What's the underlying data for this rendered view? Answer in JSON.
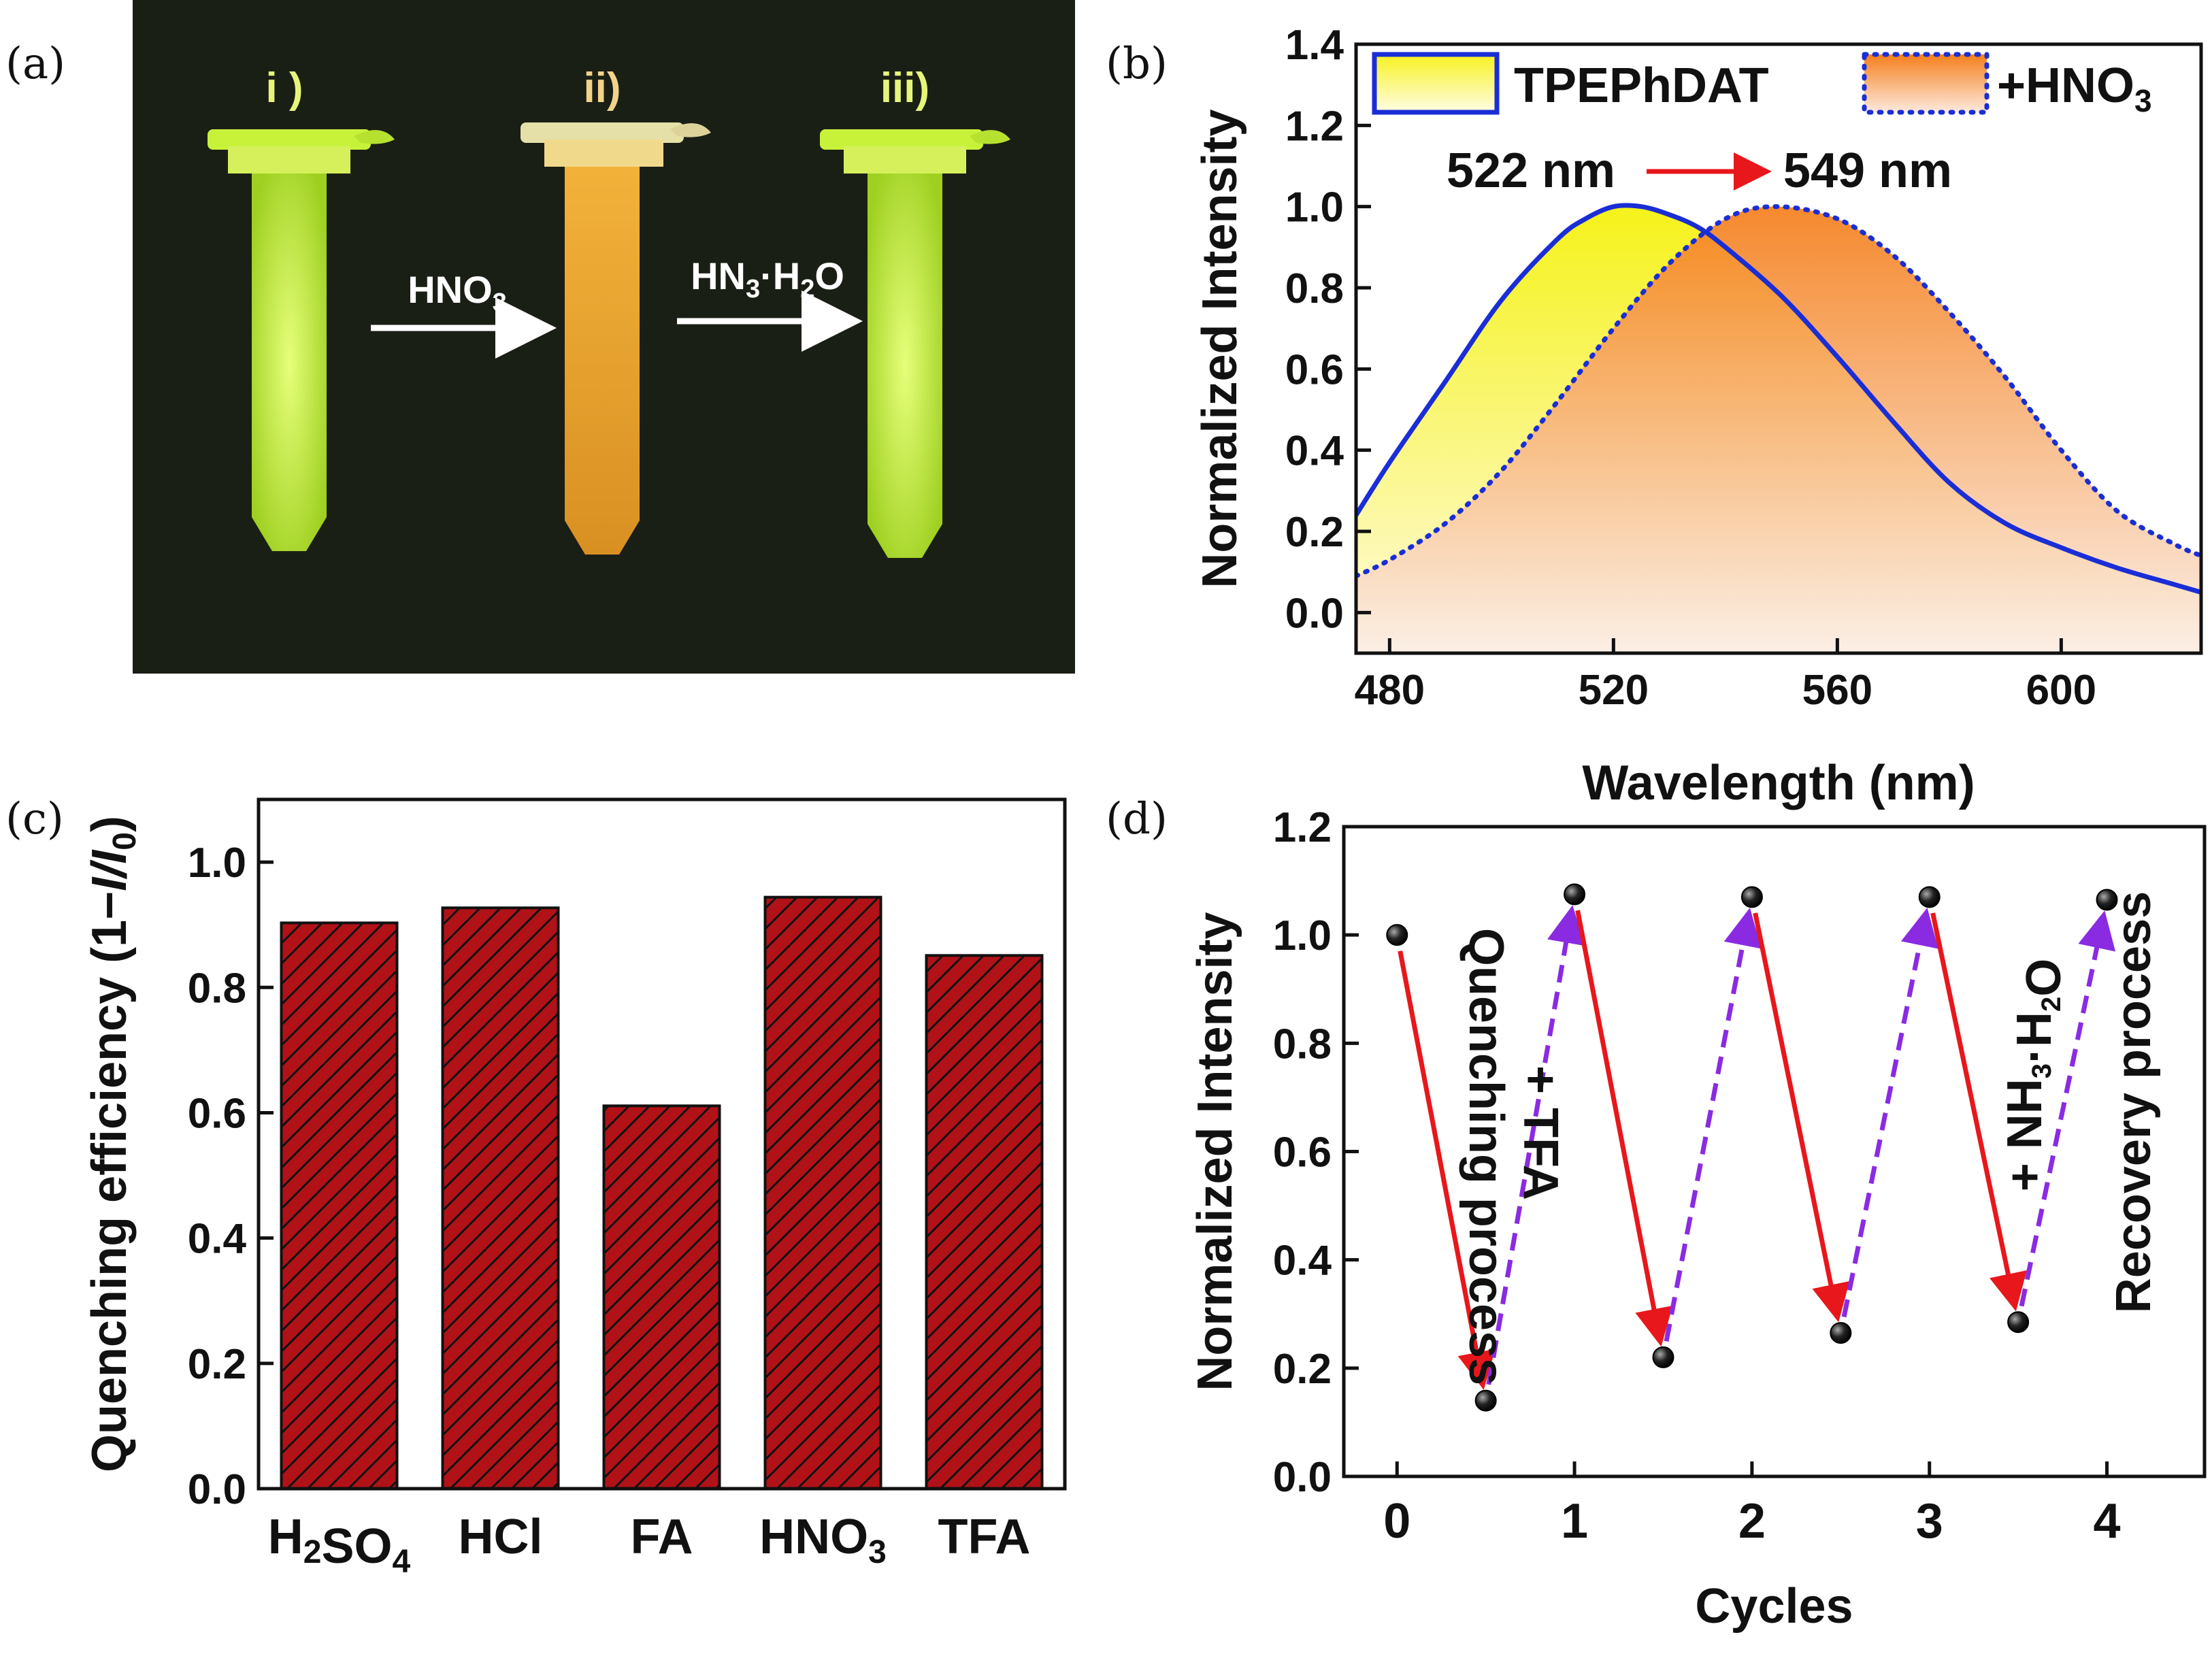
{
  "panels": {
    "a": "(a)",
    "b": "(b)",
    "c": "(c)",
    "d": "(d)"
  },
  "photo": {
    "tube_labels": [
      "i )",
      "ii)",
      "iii)"
    ],
    "arrow1": "HNO3",
    "arrow2": "HN3·H2O",
    "colors": {
      "background": "#1a1f16",
      "tube_green": "#c8f23a",
      "tube_orange": "#e9a52a"
    }
  },
  "chart_data": [
    {
      "panel": "b",
      "type": "area",
      "xlabel": "Wavelength (nm)",
      "ylabel": "Normalized Intensity",
      "xlim": [
        474,
        625
      ],
      "ylim": [
        -0.1,
        1.4
      ],
      "xticks": [
        480,
        520,
        560,
        600
      ],
      "yticks": [
        0.0,
        0.2,
        0.4,
        0.6,
        0.8,
        1.0,
        1.2,
        1.4
      ],
      "legend_position": "top",
      "series": [
        {
          "name": "TPEPhDAT",
          "color": "#1a2ed6",
          "line": "solid",
          "fill": "yellow-gradient",
          "peak": 522,
          "x": [
            474,
            480,
            490,
            500,
            510,
            515,
            520,
            525,
            530,
            535,
            540,
            550,
            560,
            570,
            580,
            590,
            600,
            610,
            620,
            625
          ],
          "y": [
            0.24,
            0.37,
            0.57,
            0.77,
            0.92,
            0.97,
            1.0,
            1.0,
            0.98,
            0.95,
            0.9,
            0.78,
            0.63,
            0.47,
            0.32,
            0.22,
            0.16,
            0.11,
            0.07,
            0.05
          ]
        },
        {
          "name": "+HNO3",
          "color": "#1a2ed6",
          "line": "dotted",
          "fill": "orange-gradient",
          "peak": 549,
          "x": [
            474,
            480,
            490,
            500,
            510,
            520,
            530,
            540,
            549,
            560,
            570,
            580,
            590,
            600,
            610,
            620,
            625
          ],
          "y": [
            0.09,
            0.13,
            0.22,
            0.35,
            0.52,
            0.7,
            0.86,
            0.97,
            1.0,
            0.97,
            0.88,
            0.74,
            0.58,
            0.4,
            0.25,
            0.17,
            0.14
          ]
        }
      ],
      "annotations": {
        "peak1": "522 nm",
        "peak2": "549 nm",
        "peak1_color": "#f5f21a",
        "peak2_color": "#f28a1e"
      }
    },
    {
      "panel": "c",
      "type": "bar",
      "xlabel": "",
      "ylabel": "Quenching efficiency (1−I/I0)",
      "ylim": [
        0.0,
        1.1
      ],
      "yticks": [
        0.0,
        0.2,
        0.4,
        0.6,
        0.8,
        1.0
      ],
      "categories": [
        "H2SO4",
        "HCl",
        "FA",
        "HNO3",
        "TFA"
      ],
      "values": [
        0.903,
        0.927,
        0.611,
        0.944,
        0.851
      ],
      "bar_color": "#b01218",
      "hatch": "diagonal"
    },
    {
      "panel": "d",
      "type": "scatter",
      "xlabel": "Cycles",
      "ylabel": "Normalized Intensity",
      "xlim": [
        -0.3,
        4.55
      ],
      "ylim": [
        0.0,
        1.2
      ],
      "xticks": [
        0,
        1,
        2,
        3,
        4
      ],
      "yticks": [
        0.0,
        0.2,
        0.4,
        0.6,
        0.8,
        1.0,
        1.2
      ],
      "x": [
        0,
        0.5,
        1,
        1.5,
        2,
        2.5,
        3,
        3.5,
        4
      ],
      "y": [
        1.0,
        0.14,
        1.075,
        0.22,
        1.07,
        0.265,
        1.07,
        0.285,
        1.065
      ],
      "quench_color": "#e8171b",
      "recovery_color": "#8a2be2",
      "annotations": {
        "quench_agent": "+ TFA",
        "quench_process": "Quenching process",
        "recovery_agent": "+ NH3·H2O",
        "recovery_process": "Recovery process"
      }
    }
  ]
}
